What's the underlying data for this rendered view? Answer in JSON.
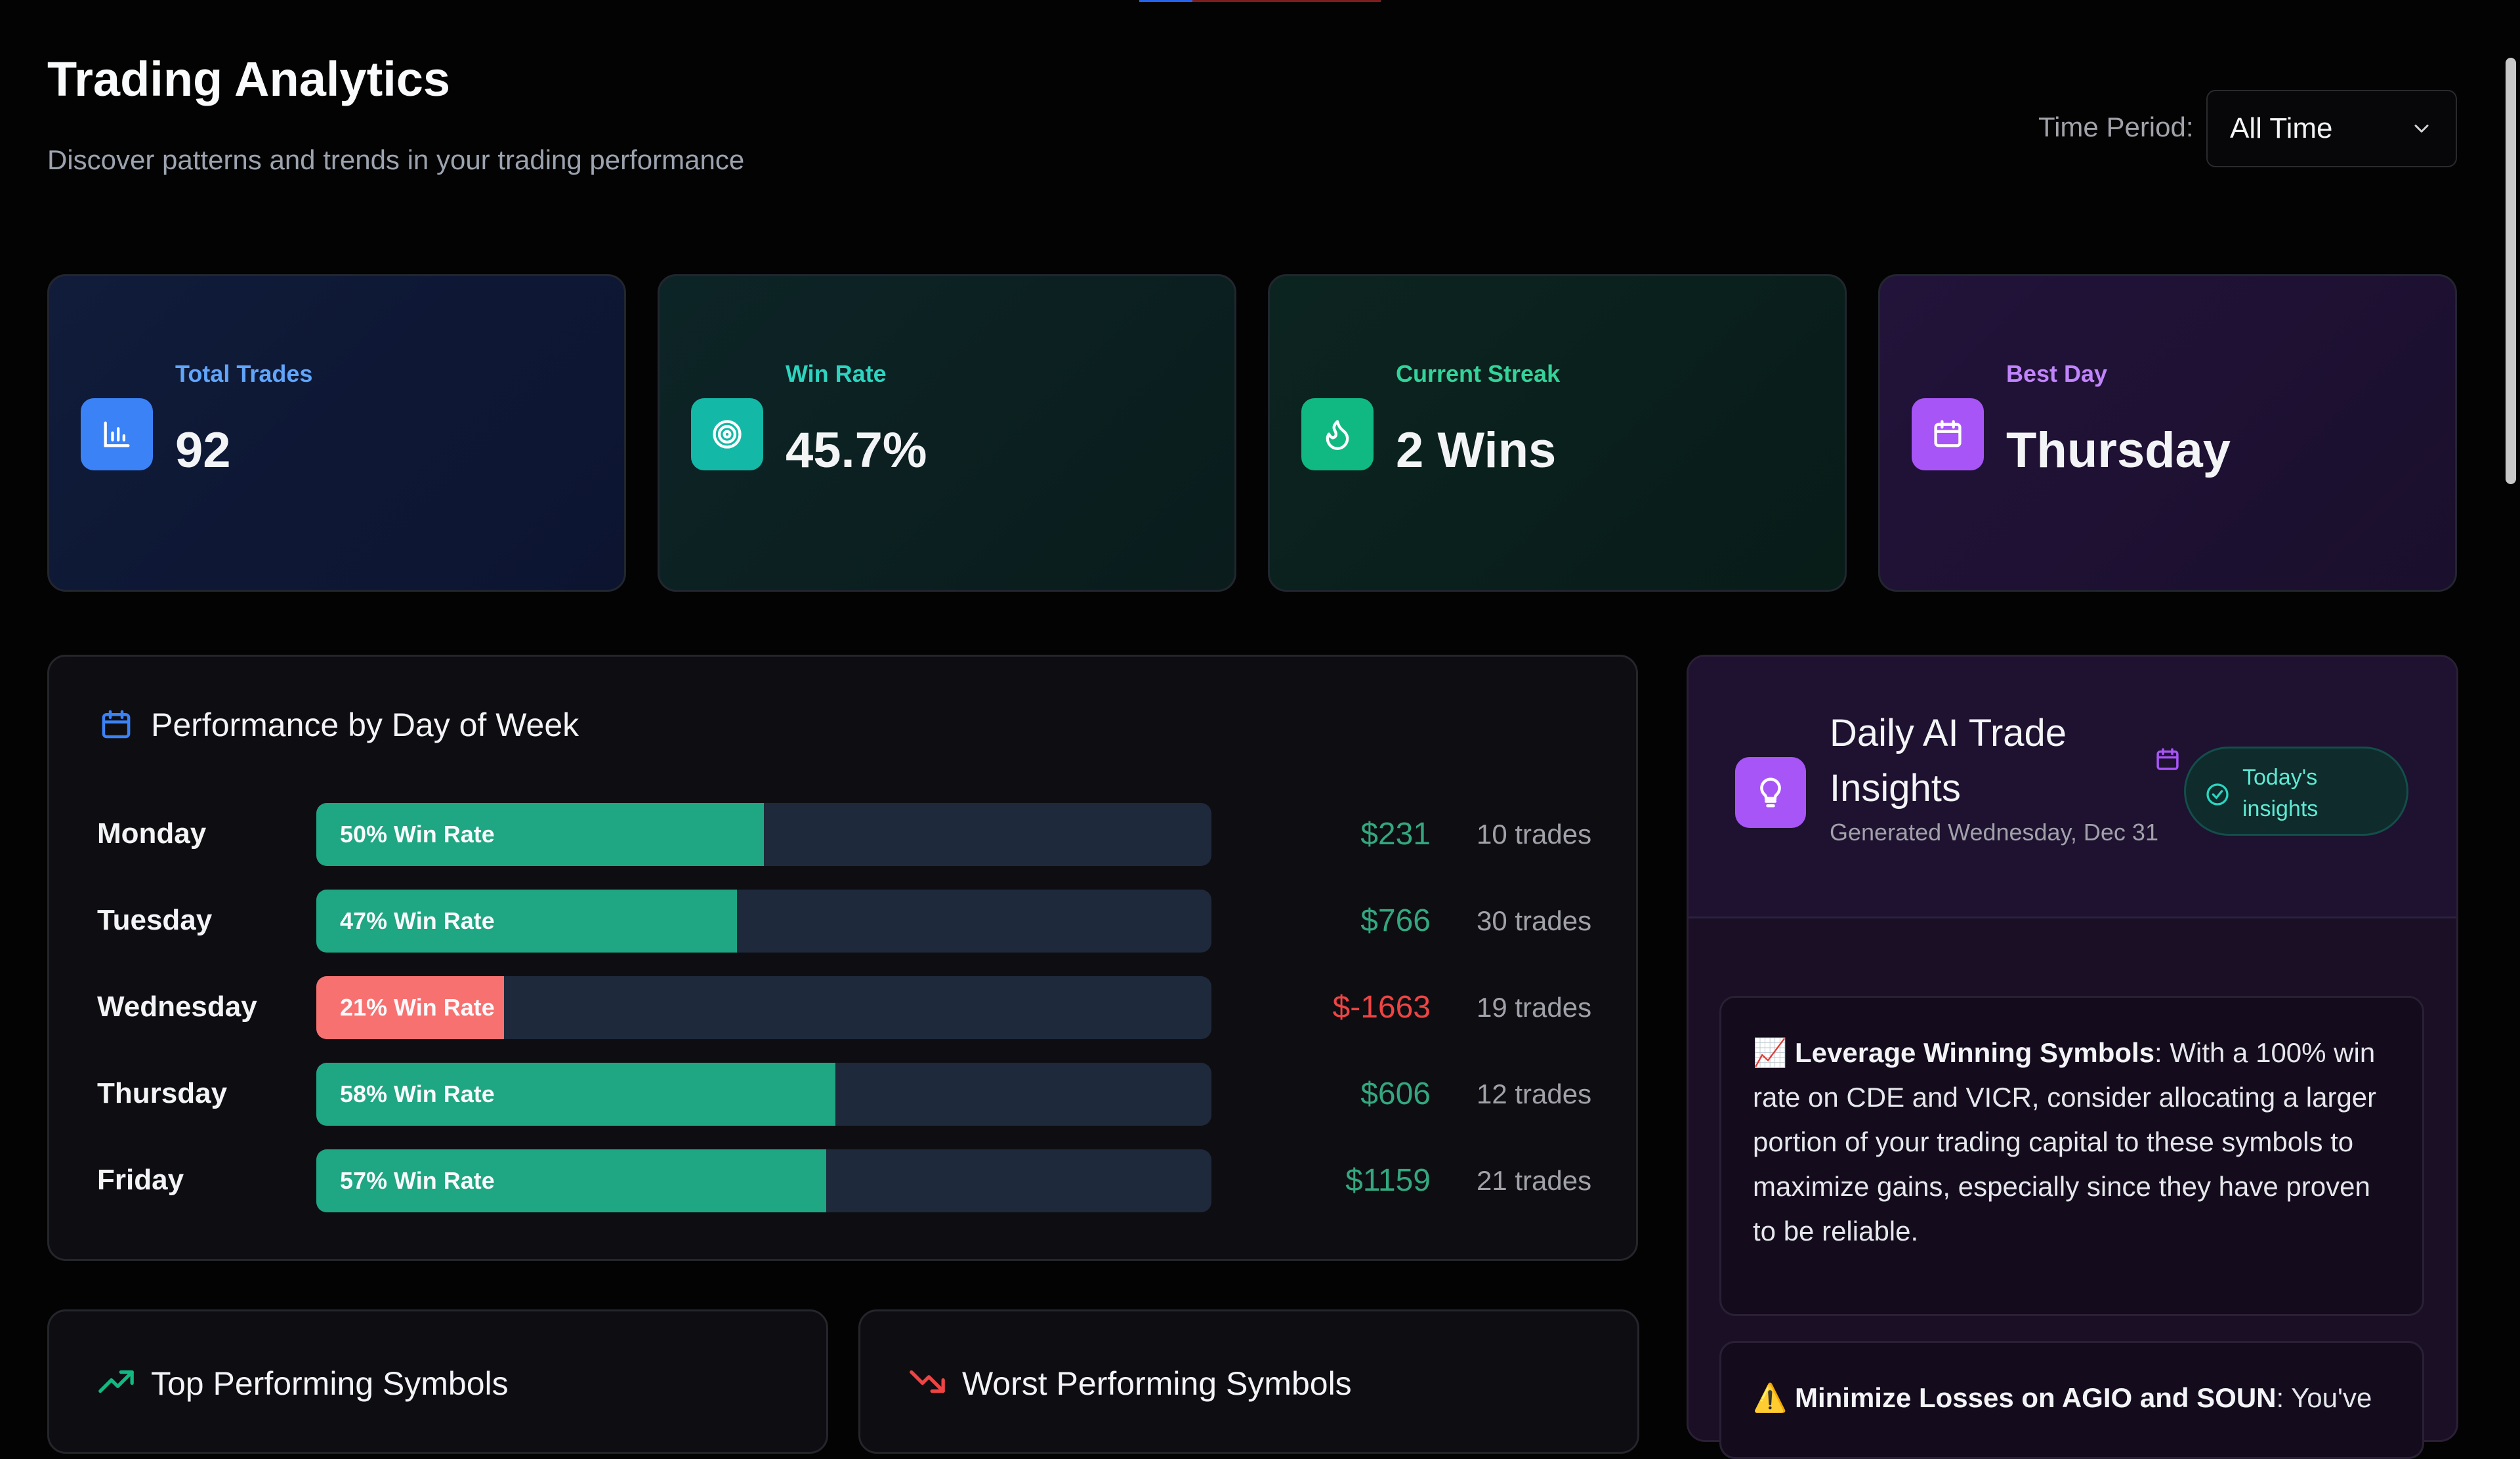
{
  "page": {
    "title": "Trading Analytics",
    "subtitle": "Discover patterns and trends in your trading performance",
    "time_period_label": "Time Period:",
    "time_period_value": "All Time"
  },
  "stats": [
    {
      "label": "Total Trades",
      "value": "92",
      "icon": "bar-chart-icon",
      "accent": "#3b82f6",
      "label_color": "#60a5fa"
    },
    {
      "label": "Win Rate",
      "value": "45.7%",
      "icon": "target-icon",
      "accent": "#14b8a6",
      "label_color": "#2dd4bf"
    },
    {
      "label": "Current Streak",
      "value": "2 Wins",
      "icon": "flame-icon",
      "accent": "#10b981",
      "label_color": "#34d399"
    },
    {
      "label": "Best Day",
      "value": "Thursday",
      "icon": "calendar-icon",
      "accent": "#a855f7",
      "label_color": "#c084fc"
    }
  ],
  "day_performance": {
    "title": "Performance by Day of Week",
    "rows": [
      {
        "day": "Monday",
        "win_rate": 50,
        "win_label": "50% Win Rate",
        "pnl": "$231",
        "trades": "10 trades",
        "positive": true
      },
      {
        "day": "Tuesday",
        "win_rate": 47,
        "win_label": "47% Win Rate",
        "pnl": "$766",
        "trades": "30 trades",
        "positive": true
      },
      {
        "day": "Wednesday",
        "win_rate": 21,
        "win_label": "21% Win Rate",
        "pnl": "$-1663",
        "trades": "19 trades",
        "positive": false
      },
      {
        "day": "Thursday",
        "win_rate": 58,
        "win_label": "58% Win Rate",
        "pnl": "$606",
        "trades": "12 trades",
        "positive": true
      },
      {
        "day": "Friday",
        "win_rate": 57,
        "win_label": "57% Win Rate",
        "pnl": "$1159",
        "trades": "21 trades",
        "positive": true
      }
    ]
  },
  "ai_insights": {
    "title": "Daily AI Trade Insights",
    "generated": "Generated Wednesday, Dec 31",
    "badge": "Today's insights",
    "items": [
      {
        "emoji": "📈",
        "heading": "Leverage Winning Symbols",
        "text": ": With a 100% win rate on CDE and VICR, consider allocating a larger portion of your trading capital to these symbols to maximize gains, especially since they have proven to be reliable."
      },
      {
        "emoji": "⚠️",
        "heading": "Minimize Losses on AGIO and SOUN",
        "text": ": You've"
      }
    ]
  },
  "symbols": {
    "top_title": "Top Performing Symbols",
    "worst_title": "Worst Performing Symbols"
  },
  "colors": {
    "positive": "#10b981",
    "negative": "#ef4444",
    "bar_positive": "#1fa682",
    "bar_negative": "#f87171"
  }
}
